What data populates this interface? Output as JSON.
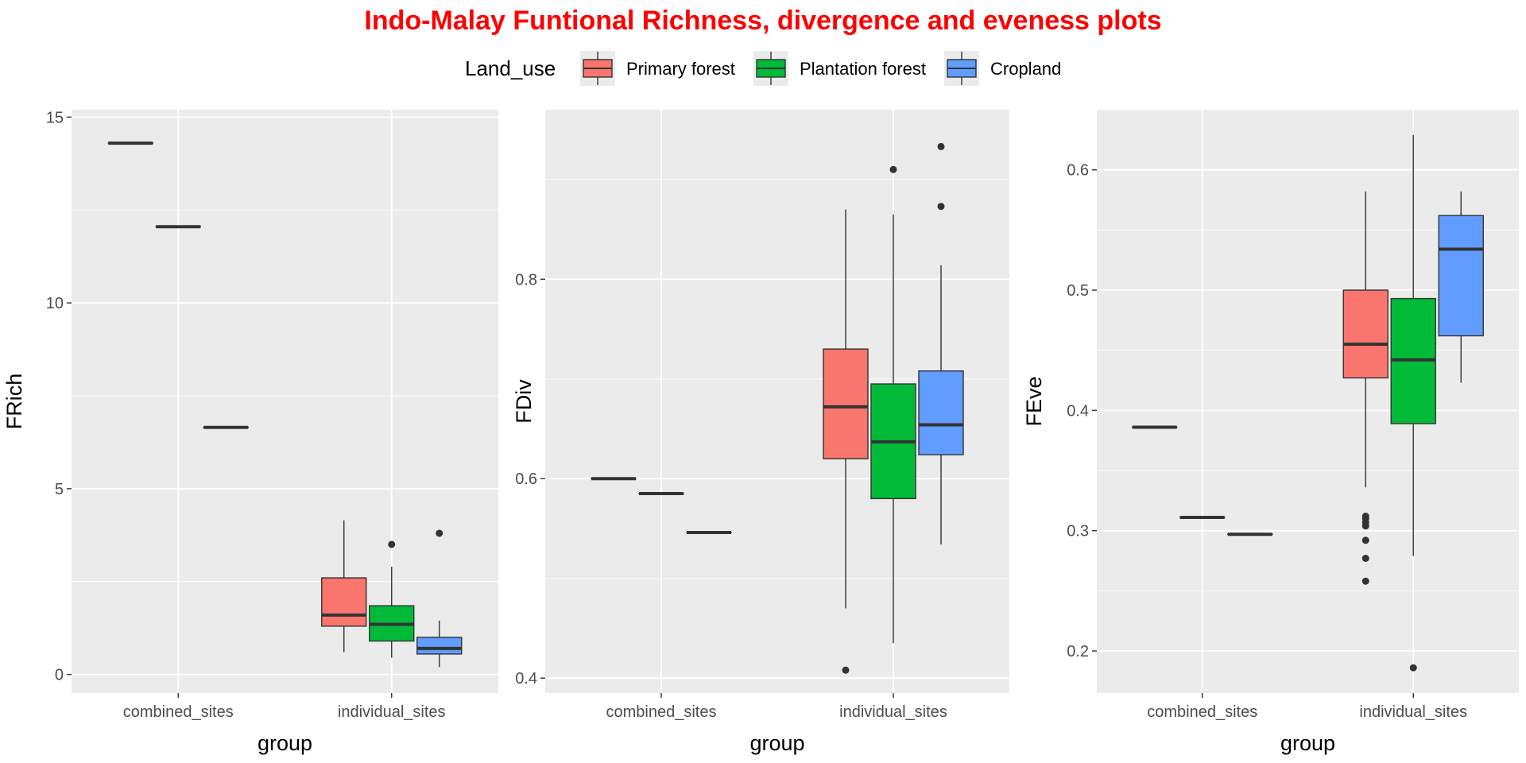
{
  "title": "Indo-Malay Funtional Richness, divergence and eveness plots",
  "title_color": "#FF0000",
  "legend": {
    "title": "Land_use",
    "placement": "top",
    "items": [
      {
        "label": "Primary forest",
        "color": "#F8766D"
      },
      {
        "label": "Plantation forest",
        "color": "#00BA38"
      },
      {
        "label": "Cropland",
        "color": "#619CFF"
      }
    ]
  },
  "chart_data": [
    {
      "type": "boxplot",
      "xlabel": "group",
      "ylabel": "FRich",
      "categories": [
        "combined_sites",
        "individual_sites"
      ],
      "ylim": [
        -0.5,
        15.2
      ],
      "yticks": [
        0,
        5,
        10,
        15
      ],
      "yticklabels": [
        "0",
        "5",
        "10",
        "15"
      ],
      "grid": true,
      "series": [
        {
          "name": "Primary forest",
          "boxes": [
            {
              "category": "combined_sites",
              "q1": 14.3,
              "median": 14.3,
              "q3": 14.3,
              "whisker_low": 14.3,
              "whisker_high": 14.3,
              "outliers": []
            },
            {
              "category": "individual_sites",
              "q1": 1.3,
              "median": 1.6,
              "q3": 2.6,
              "whisker_low": 0.6,
              "whisker_high": 4.15,
              "outliers": []
            }
          ]
        },
        {
          "name": "Plantation forest",
          "boxes": [
            {
              "category": "combined_sites",
              "q1": 12.05,
              "median": 12.05,
              "q3": 12.05,
              "whisker_low": 12.05,
              "whisker_high": 12.05,
              "outliers": []
            },
            {
              "category": "individual_sites",
              "q1": 0.9,
              "median": 1.35,
              "q3": 1.85,
              "whisker_low": 0.45,
              "whisker_high": 2.9,
              "outliers": [
                3.5
              ]
            }
          ]
        },
        {
          "name": "Cropland",
          "boxes": [
            {
              "category": "combined_sites",
              "q1": 6.65,
              "median": 6.65,
              "q3": 6.65,
              "whisker_low": 6.65,
              "whisker_high": 6.65,
              "outliers": []
            },
            {
              "category": "individual_sites",
              "q1": 0.55,
              "median": 0.7,
              "q3": 1.0,
              "whisker_low": 0.2,
              "whisker_high": 1.45,
              "outliers": [
                3.8
              ]
            }
          ]
        }
      ]
    },
    {
      "type": "boxplot",
      "xlabel": "group",
      "ylabel": "FDiv",
      "categories": [
        "combined_sites",
        "individual_sites"
      ],
      "ylim": [
        0.385,
        0.97
      ],
      "yticks": [
        0.4,
        0.6,
        0.8
      ],
      "yticklabels": [
        "0.4",
        "0.6",
        "0.8"
      ],
      "grid": true,
      "series": [
        {
          "name": "Primary forest",
          "boxes": [
            {
              "category": "combined_sites",
              "q1": 0.6,
              "median": 0.6,
              "q3": 0.6,
              "whisker_low": 0.6,
              "whisker_high": 0.6,
              "outliers": []
            },
            {
              "category": "individual_sites",
              "q1": 0.62,
              "median": 0.672,
              "q3": 0.73,
              "whisker_low": 0.47,
              "whisker_high": 0.87,
              "outliers": [
                0.408
              ]
            }
          ]
        },
        {
          "name": "Plantation forest",
          "boxes": [
            {
              "category": "combined_sites",
              "q1": 0.585,
              "median": 0.585,
              "q3": 0.585,
              "whisker_low": 0.585,
              "whisker_high": 0.585,
              "outliers": []
            },
            {
              "category": "individual_sites",
              "q1": 0.58,
              "median": 0.637,
              "q3": 0.695,
              "whisker_low": 0.435,
              "whisker_high": 0.865,
              "outliers": [
                0.91
              ]
            }
          ]
        },
        {
          "name": "Cropland",
          "boxes": [
            {
              "category": "combined_sites",
              "q1": 0.546,
              "median": 0.546,
              "q3": 0.546,
              "whisker_low": 0.546,
              "whisker_high": 0.546,
              "outliers": []
            },
            {
              "category": "individual_sites",
              "q1": 0.624,
              "median": 0.654,
              "q3": 0.708,
              "whisker_low": 0.534,
              "whisker_high": 0.814,
              "outliers": [
                0.873,
                0.933
              ]
            }
          ]
        }
      ]
    },
    {
      "type": "boxplot",
      "xlabel": "group",
      "ylabel": "FEve",
      "categories": [
        "combined_sites",
        "individual_sites"
      ],
      "ylim": [
        0.165,
        0.65
      ],
      "yticks": [
        0.2,
        0.3,
        0.4,
        0.5,
        0.6
      ],
      "yticklabels": [
        "0.2",
        "0.3",
        "0.4",
        "0.5",
        "0.6"
      ],
      "grid": true,
      "series": [
        {
          "name": "Primary forest",
          "boxes": [
            {
              "category": "combined_sites",
              "q1": 0.386,
              "median": 0.386,
              "q3": 0.386,
              "whisker_low": 0.386,
              "whisker_high": 0.386,
              "outliers": []
            },
            {
              "category": "individual_sites",
              "q1": 0.427,
              "median": 0.455,
              "q3": 0.5,
              "whisker_low": 0.336,
              "whisker_high": 0.582,
              "outliers": [
                0.258,
                0.277,
                0.292,
                0.304,
                0.307,
                0.31,
                0.312
              ]
            }
          ]
        },
        {
          "name": "Plantation forest",
          "boxes": [
            {
              "category": "combined_sites",
              "q1": 0.311,
              "median": 0.311,
              "q3": 0.311,
              "whisker_low": 0.311,
              "whisker_high": 0.311,
              "outliers": []
            },
            {
              "category": "individual_sites",
              "q1": 0.389,
              "median": 0.442,
              "q3": 0.493,
              "whisker_low": 0.279,
              "whisker_high": 0.629,
              "outliers": [
                0.186
              ]
            }
          ]
        },
        {
          "name": "Cropland",
          "boxes": [
            {
              "category": "combined_sites",
              "q1": 0.297,
              "median": 0.297,
              "q3": 0.297,
              "whisker_low": 0.297,
              "whisker_high": 0.297,
              "outliers": []
            },
            {
              "category": "individual_sites",
              "q1": 0.462,
              "median": 0.534,
              "q3": 0.562,
              "whisker_low": 0.423,
              "whisker_high": 0.582,
              "outliers": []
            }
          ]
        }
      ]
    }
  ]
}
